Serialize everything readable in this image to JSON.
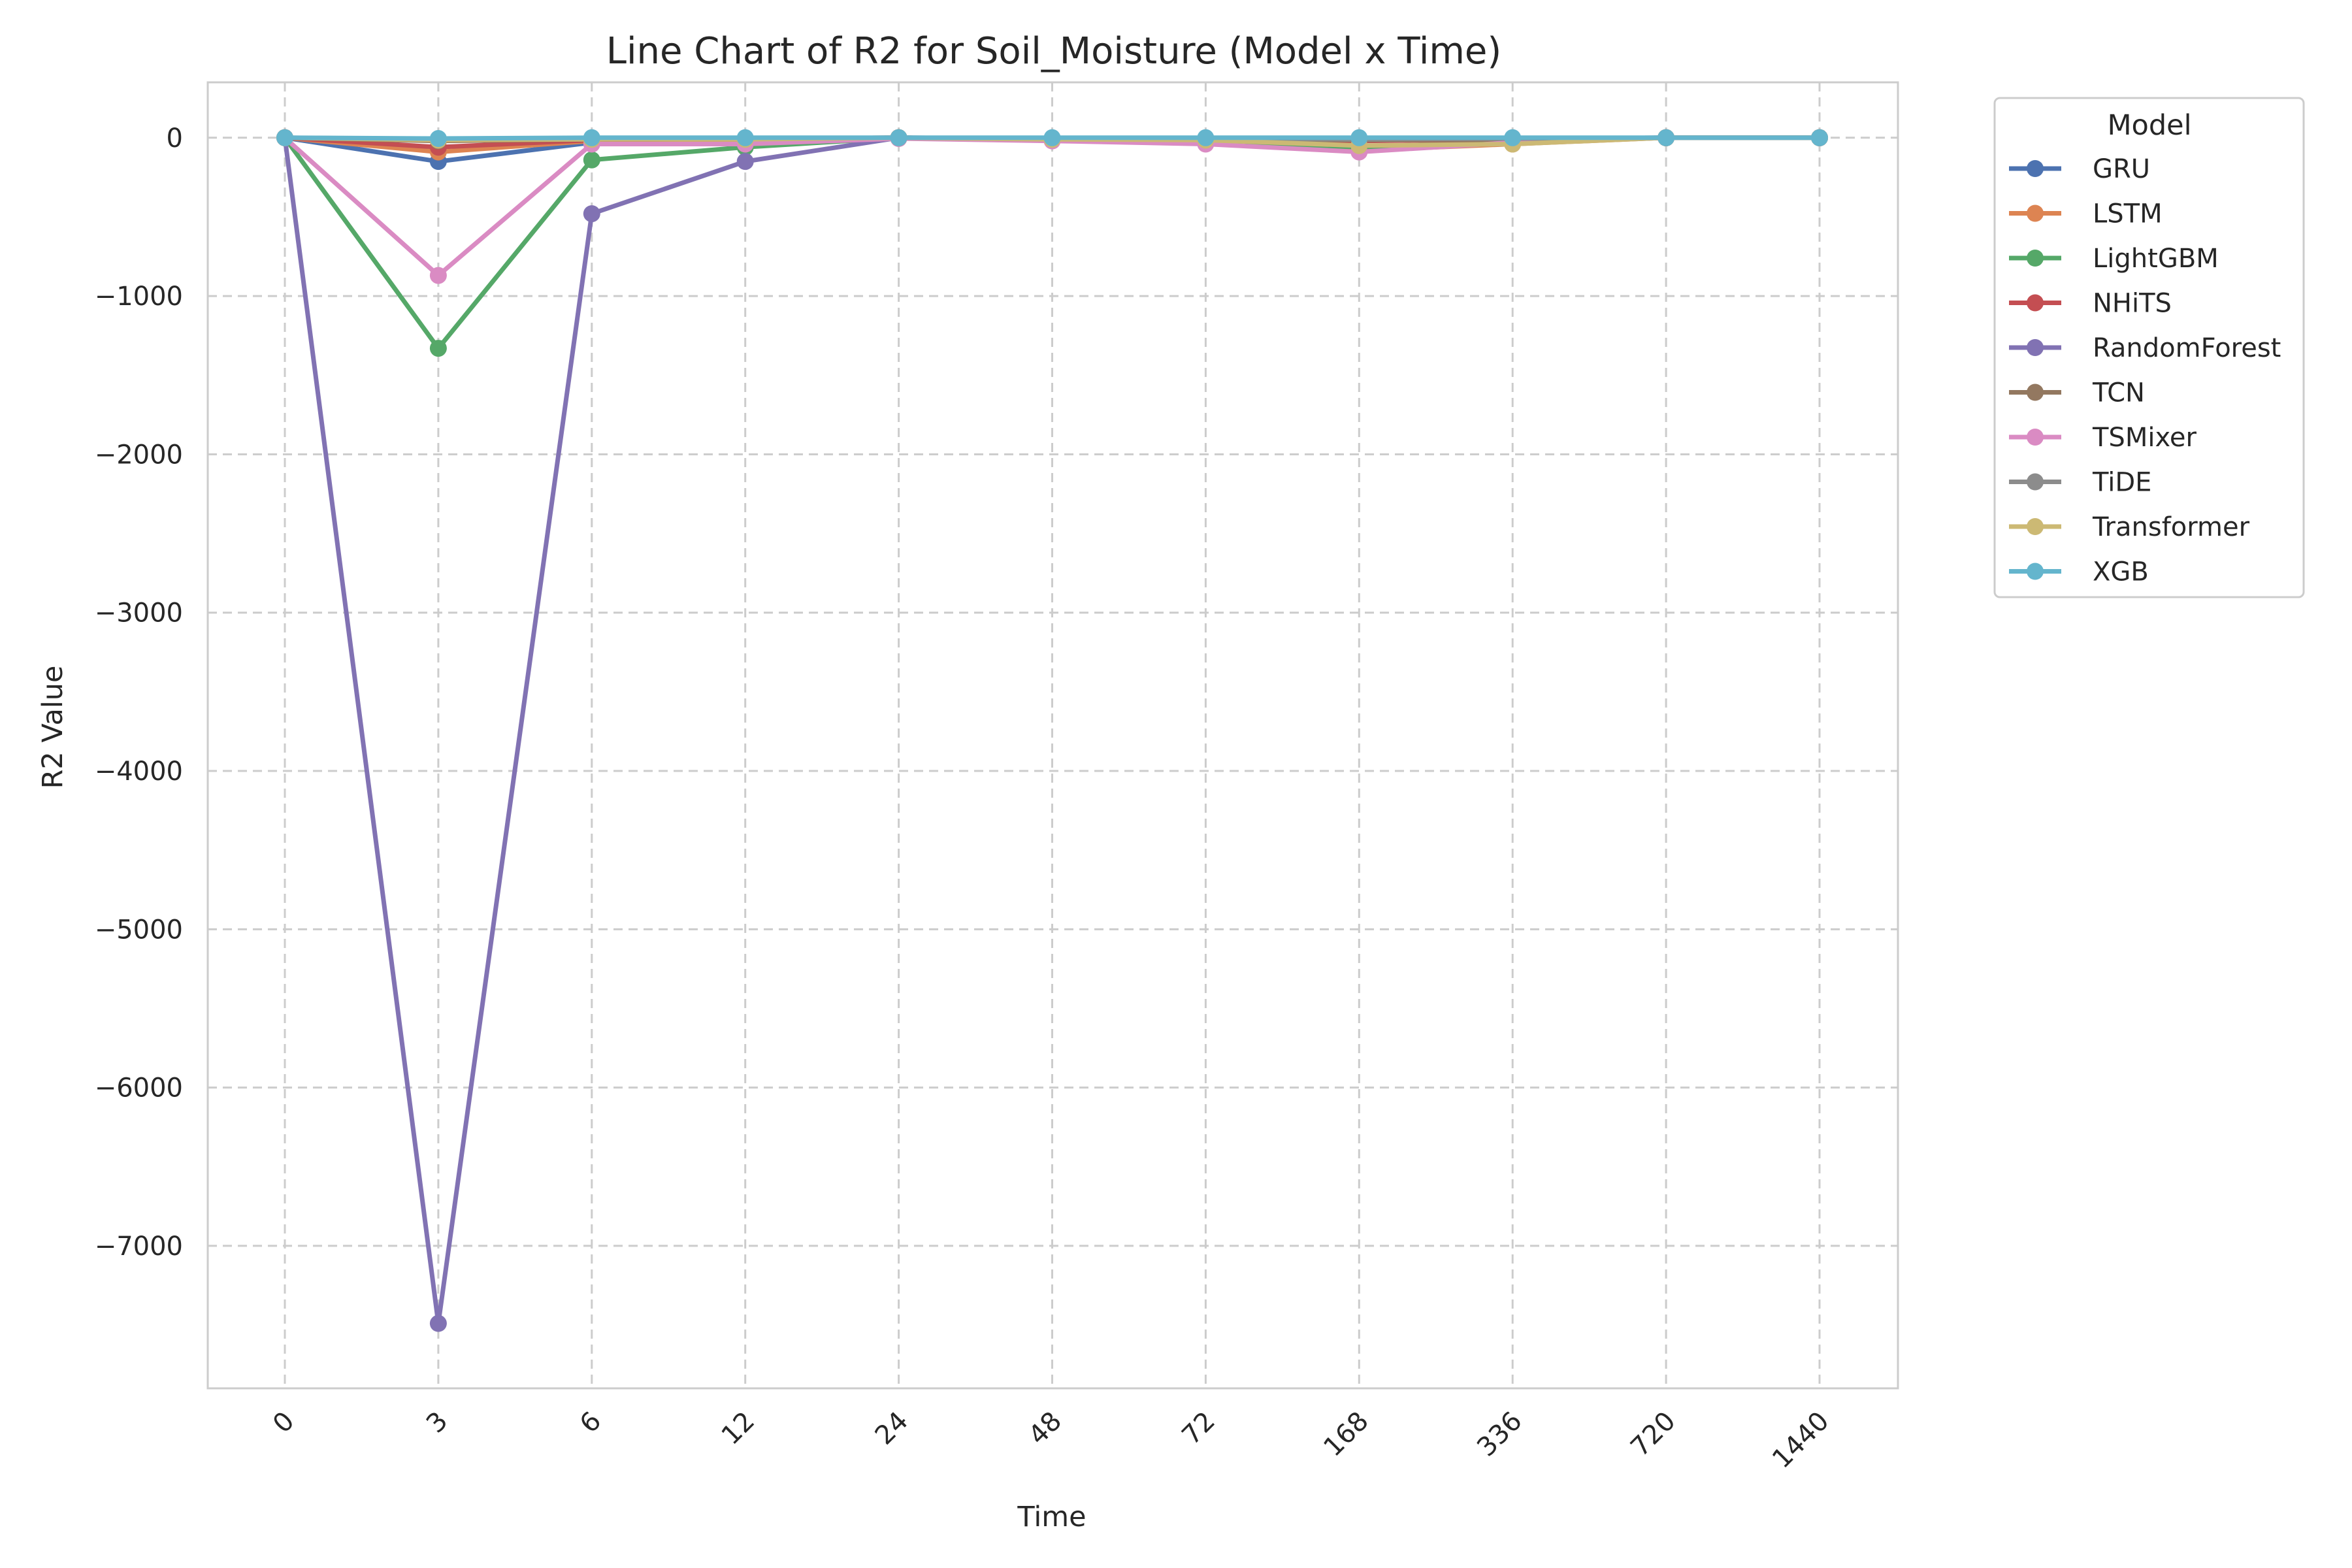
{
  "chart_data": {
    "type": "line",
    "title": "Line Chart of R2 for Soil_Moisture (Model x Time)",
    "xlabel": "Time",
    "ylabel": "R2 Value",
    "categories": [
      "0",
      "3",
      "6",
      "12",
      "24",
      "48",
      "72",
      "168",
      "336",
      "720",
      "1440"
    ],
    "ylim": [
      -7900,
      350
    ],
    "yticks": [
      0,
      -1000,
      -2000,
      -3000,
      -4000,
      -5000,
      -6000,
      -7000
    ],
    "ytick_labels": [
      "0",
      "−1000",
      "−2000",
      "−3000",
      "−4000",
      "−5000",
      "−6000",
      "−7000"
    ],
    "grid": true,
    "legend_title": "Model",
    "legend_position": "outside-top-right",
    "series": [
      {
        "name": "GRU",
        "color": "#4c72b0",
        "values": [
          0,
          -150,
          -30,
          -10,
          0,
          -5,
          -5,
          -10,
          -5,
          0,
          0
        ]
      },
      {
        "name": "LSTM",
        "color": "#dd8452",
        "values": [
          0,
          -90,
          -20,
          -10,
          0,
          -10,
          -20,
          -80,
          -40,
          0,
          0
        ]
      },
      {
        "name": "LightGBM",
        "color": "#55a868",
        "values": [
          0,
          -1330,
          -140,
          -60,
          0,
          -10,
          -20,
          -60,
          -20,
          0,
          0
        ]
      },
      {
        "name": "NHiTS",
        "color": "#c44e52",
        "values": [
          0,
          -60,
          -15,
          -5,
          0,
          -10,
          -10,
          -20,
          -10,
          0,
          0
        ]
      },
      {
        "name": "RandomForest",
        "color": "#8172b3",
        "values": [
          0,
          -7490,
          -480,
          -150,
          0,
          -10,
          -10,
          -10,
          -5,
          0,
          0
        ]
      },
      {
        "name": "TCN",
        "color": "#937860",
        "values": [
          0,
          -20,
          -10,
          -5,
          0,
          -10,
          -10,
          -15,
          -10,
          0,
          0
        ]
      },
      {
        "name": "TSMixer",
        "color": "#da8bc3",
        "values": [
          0,
          -870,
          -40,
          -40,
          -5,
          -20,
          -40,
          -90,
          -30,
          0,
          0
        ]
      },
      {
        "name": "TiDE",
        "color": "#8c8c8c",
        "values": [
          0,
          -10,
          -5,
          -5,
          0,
          -5,
          -5,
          -10,
          -5,
          0,
          0
        ]
      },
      {
        "name": "Transformer",
        "color": "#ccb974",
        "values": [
          0,
          -15,
          -10,
          -10,
          0,
          -10,
          -15,
          -50,
          -40,
          0,
          0
        ]
      },
      {
        "name": "XGB",
        "color": "#64b5cd",
        "values": [
          0,
          -5,
          0,
          0,
          0,
          0,
          0,
          0,
          0,
          0,
          0
        ]
      }
    ]
  }
}
